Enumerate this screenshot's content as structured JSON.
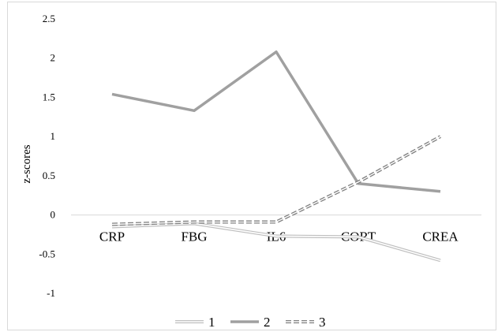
{
  "chart_data": {
    "type": "line",
    "title": "",
    "xlabel": "",
    "ylabel": "z-scores",
    "categories": [
      "CRP",
      "FBG",
      "IL6",
      "CORT",
      "CREA"
    ],
    "ylim": [
      -1,
      2.5
    ],
    "yticks": [
      -1,
      -0.5,
      0,
      0.5,
      1,
      1.5,
      2,
      2.5
    ],
    "ytick_labels": [
      "-1",
      "-0.5",
      "0",
      "0.5",
      "1",
      "1.5",
      "2",
      "2.5"
    ],
    "grid": false,
    "legend_position": "bottom",
    "series": [
      {
        "name": "1",
        "values": [
          -0.15,
          -0.11,
          -0.27,
          -0.28,
          -0.58
        ],
        "color": "#bfbfbf",
        "style": "double"
      },
      {
        "name": "2",
        "values": [
          1.54,
          1.33,
          2.08,
          0.4,
          0.3
        ],
        "color": "#a0a0a0",
        "style": "solid"
      },
      {
        "name": "3",
        "values": [
          -0.12,
          -0.09,
          -0.09,
          0.42,
          1.0
        ],
        "color": "#7f7f7f",
        "style": "dashed-double"
      }
    ]
  }
}
